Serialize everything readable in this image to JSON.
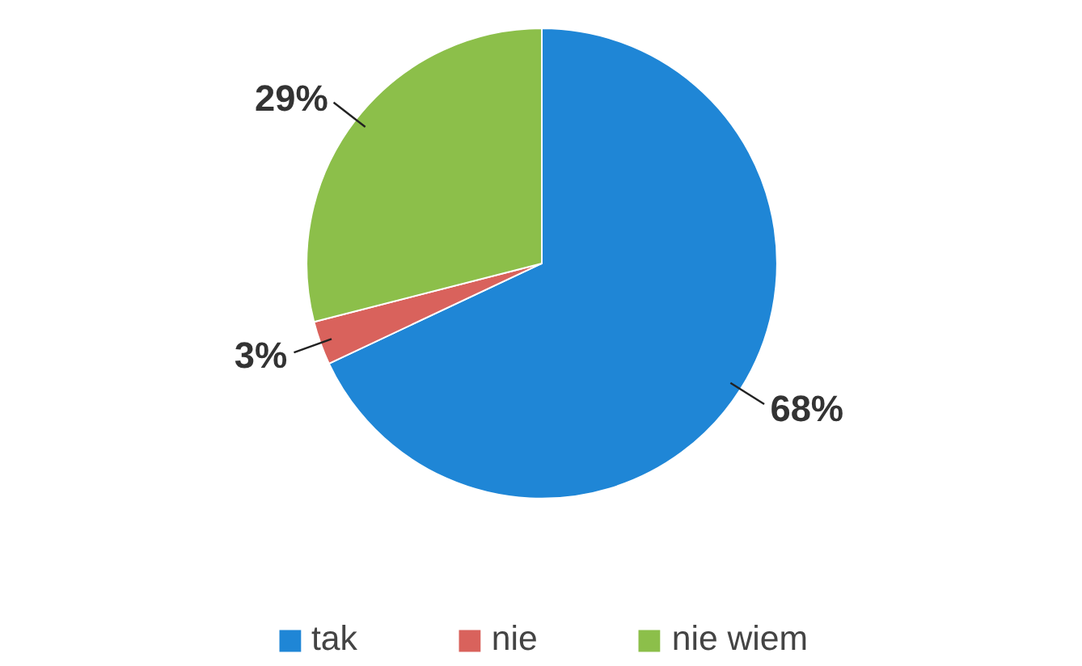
{
  "chart_data": {
    "type": "pie",
    "categories": [
      "tak",
      "nie",
      "nie wiem"
    ],
    "values": [
      68,
      3,
      29
    ],
    "colors": [
      "#1f86d6",
      "#d9625c",
      "#8cbf4a"
    ],
    "value_labels": [
      "68%",
      "3%",
      "29%"
    ],
    "legend": "bottom"
  }
}
